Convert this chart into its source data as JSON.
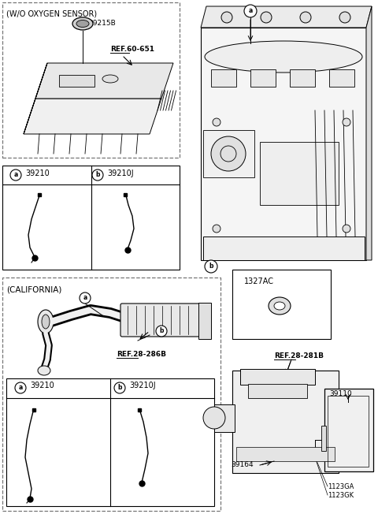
{
  "bg_color": "#ffffff",
  "line_color": "#000000",
  "fig_width": 4.8,
  "fig_height": 6.52,
  "labels": {
    "wo_oxygen": "(W/O OXYGEN SENSOR)",
    "california": "(CALIFORNIA)",
    "part_39215B": "39215B",
    "ref_60651": "REF.60-651",
    "ref_28286B": "REF.28-286B",
    "ref_28281B": "REF.28-281B",
    "part_1327AC": "1327AC",
    "part_39110": "39110",
    "part_39164": "39164",
    "part_1123GA": "1123GA",
    "part_1123GK": "1123GK",
    "sensor_a": "39210",
    "sensor_b": "39210J"
  }
}
